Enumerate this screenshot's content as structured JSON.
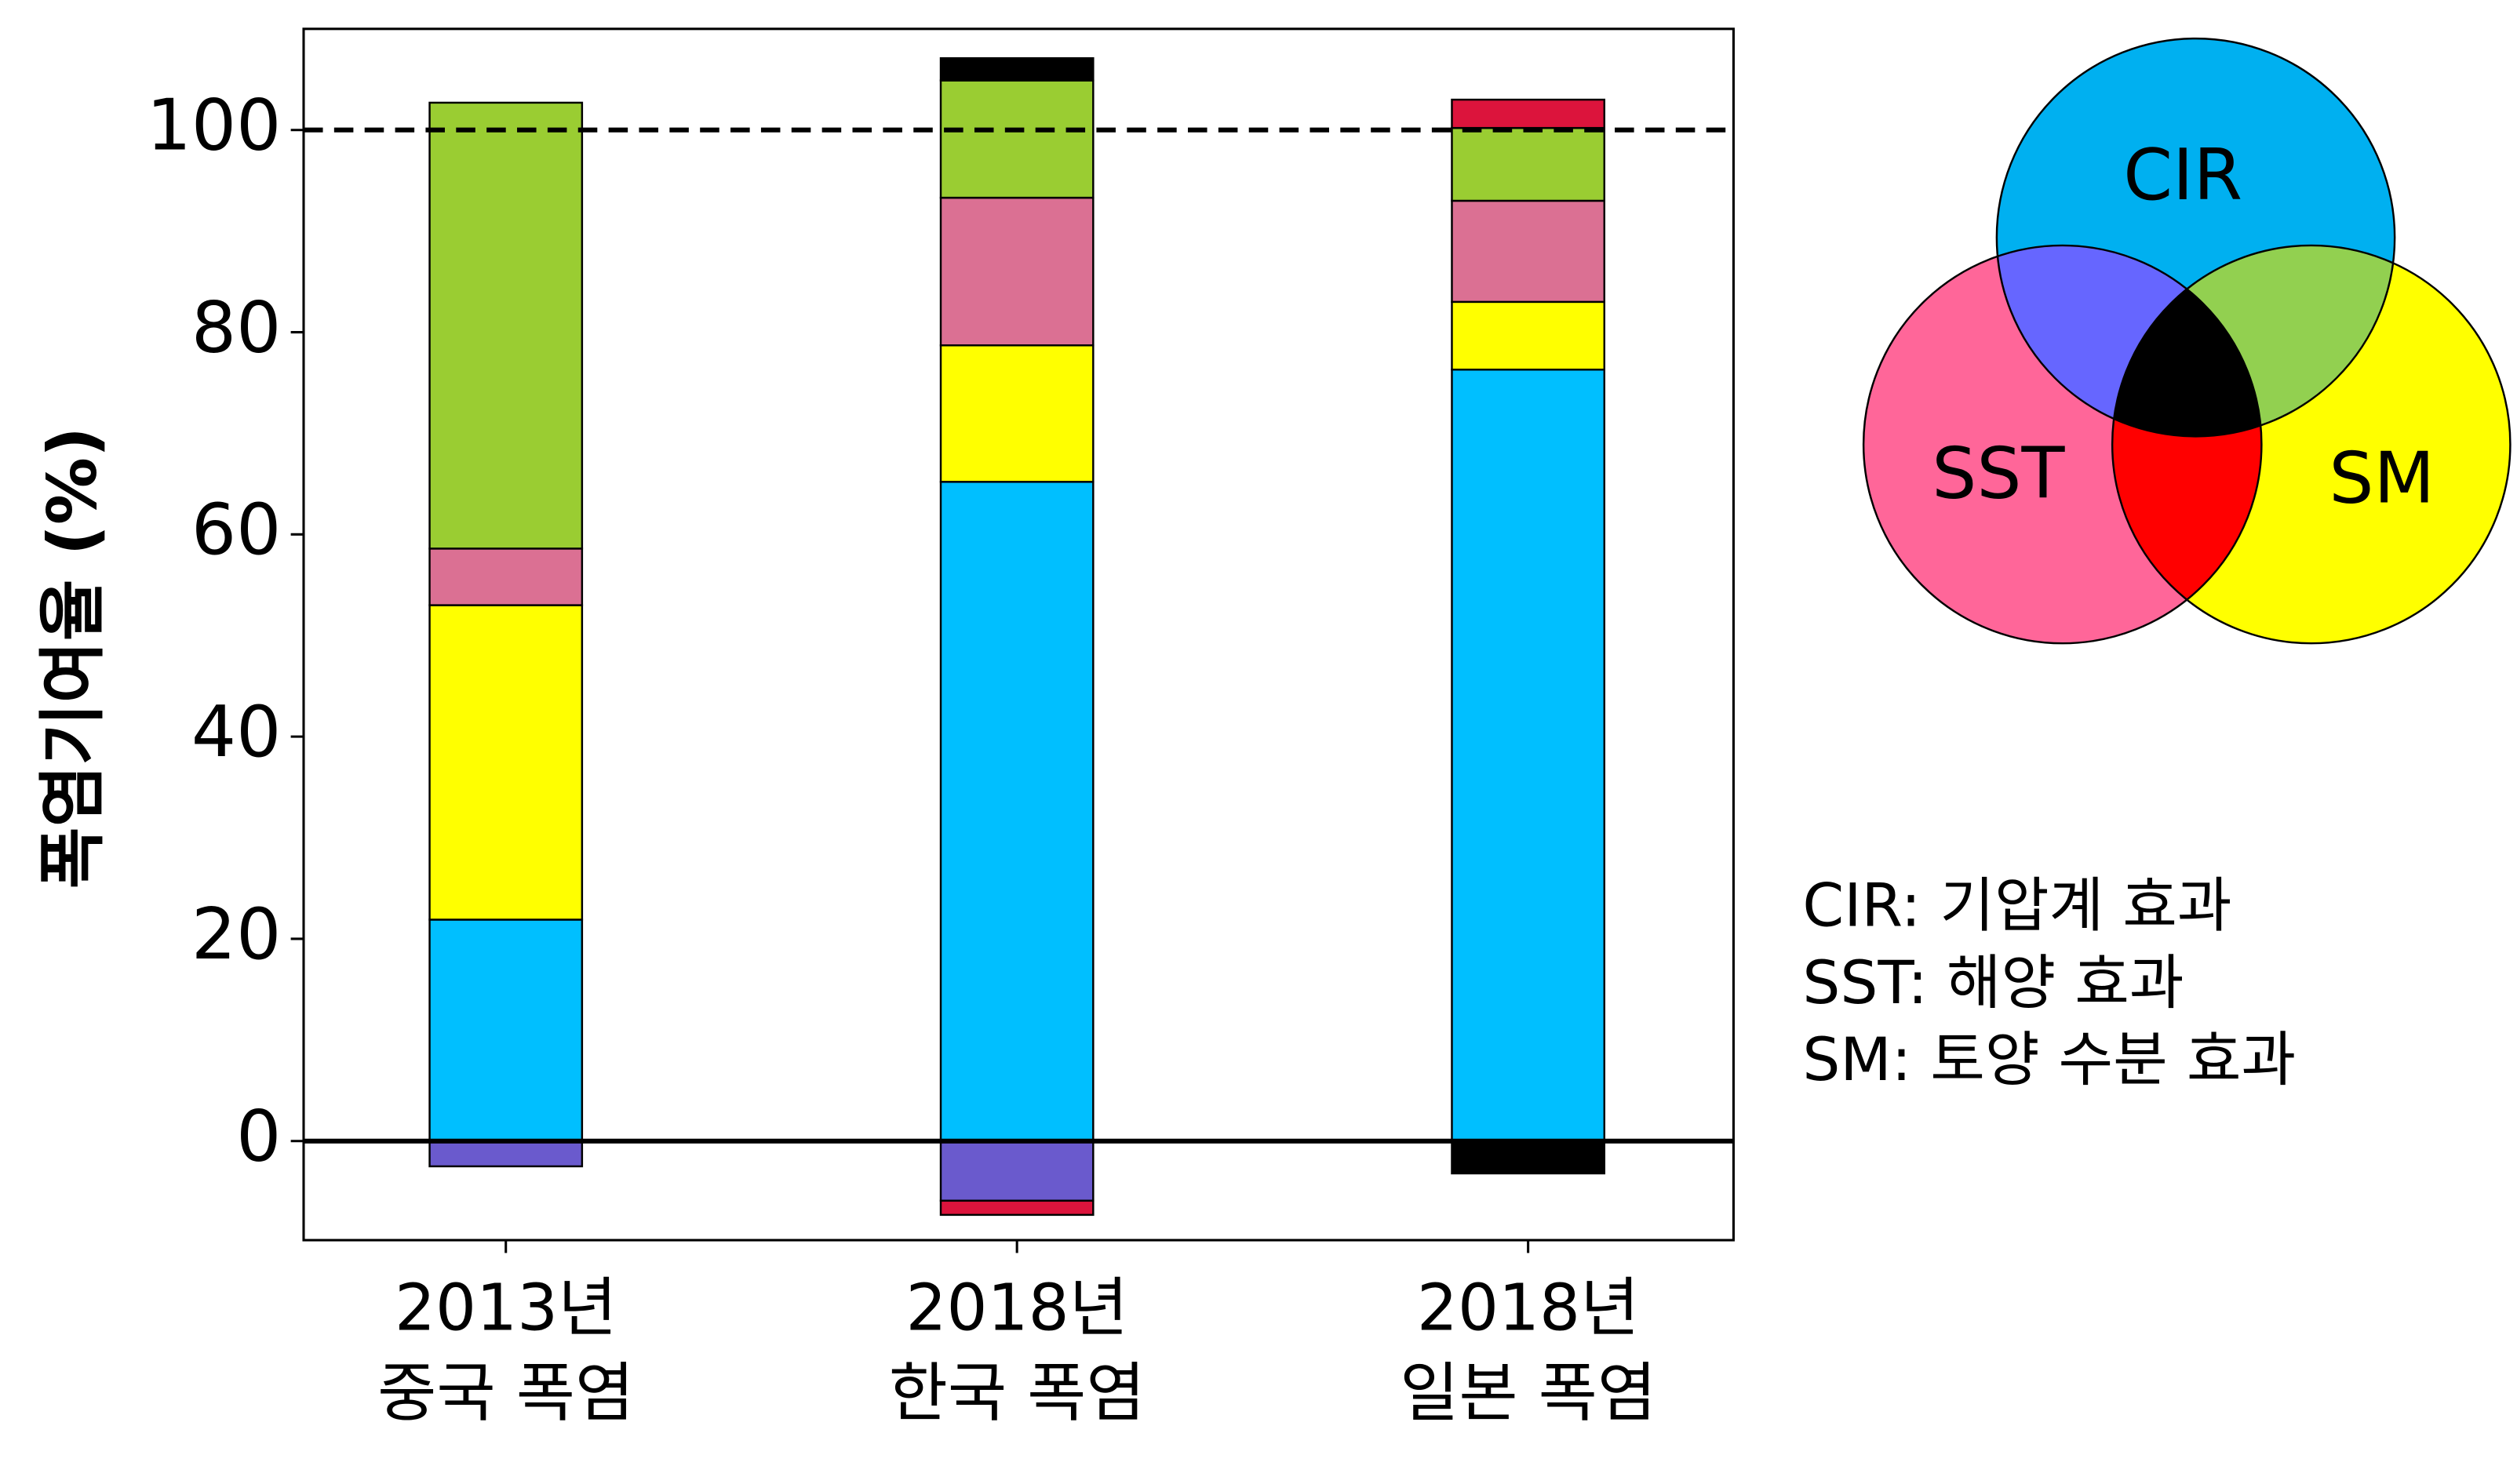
{
  "chart_data": {
    "type": "stacked_bar",
    "y_label": "폭염기여율 (%)",
    "categories": [
      [
        "2013년",
        "중국 폭염"
      ],
      [
        "2018년",
        "한국 폭염"
      ],
      [
        "2018년",
        "일본 폭염"
      ]
    ],
    "series": [
      {
        "color": "#00bfff",
        "values": [
          21.9,
          65.2,
          76.3
        ]
      },
      {
        "color": "#ffff00",
        "values": [
          31.1,
          13.5,
          6.7
        ]
      },
      {
        "color": "#db7093",
        "values": [
          5.6,
          14.6,
          10.0
        ]
      },
      {
        "color": "#9acd32",
        "values": [
          44.1,
          11.6,
          7.2
        ]
      },
      {
        "color": "#6a5acd",
        "values": [
          -2.5,
          -5.9,
          null
        ]
      },
      {
        "color": "#dc143c",
        "values": [
          null,
          -1.4,
          2.8
        ]
      },
      {
        "color": "#000000",
        "values": [
          null,
          2.2,
          -3.2
        ]
      }
    ],
    "ylim": [
      -9.8,
      110
    ],
    "yticks": [
      0,
      20,
      40,
      60,
      80,
      100
    ],
    "reference_line": 100
  },
  "venn": {
    "circles": [
      {
        "label": "CIR",
        "color": "#00b0f0"
      },
      {
        "label": "SST",
        "color": "#ff6699"
      },
      {
        "label": "SM",
        "color": "#ffff00"
      }
    ],
    "overlaps": {
      "CIR_SST": "#6666ff",
      "CIR_SM": "#92d050",
      "SST_SM": "#ff0000",
      "all": "#000000"
    }
  },
  "notes": [
    "CIR: 기압계 효과",
    "SST: 해양 효과",
    "SM: 토양 수분 효과"
  ]
}
